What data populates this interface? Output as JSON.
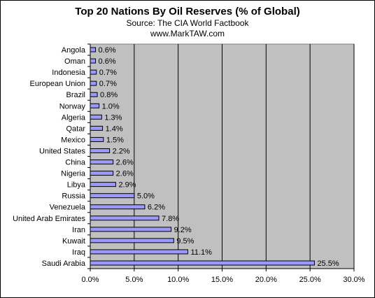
{
  "chart_data": {
    "type": "bar",
    "orientation": "horizontal",
    "title": "Top 20 Nations By Oil Reserves (% of Global)",
    "subtitle_lines": [
      "Source: The CIA World Factbook",
      "www.MarkTAW.com"
    ],
    "categories": [
      "Angola",
      "Oman",
      "Indonesia",
      "European Union",
      "Brazil",
      "Norway",
      "Algeria",
      "Qatar",
      "Mexico",
      "United States",
      "China",
      "Nigeria",
      "Libya",
      "Russia",
      "Venezuela",
      "United Arab Emirates",
      "Iran",
      "Kuwait",
      "Iraq",
      "Saudi Arabia"
    ],
    "values": [
      0.6,
      0.6,
      0.7,
      0.7,
      0.8,
      1.0,
      1.3,
      1.4,
      1.5,
      2.2,
      2.6,
      2.6,
      2.9,
      5.0,
      6.2,
      7.8,
      9.2,
      9.5,
      11.1,
      25.5
    ],
    "value_labels": [
      "0.6%",
      "0.6%",
      "0.7%",
      "0.7%",
      "0.8%",
      "1.0%",
      "1.3%",
      "1.4%",
      "1.5%",
      "2.2%",
      "2.6%",
      "2.6%",
      "2.9%",
      "5.0%",
      "6.2%",
      "7.8%",
      "9.2%",
      "9.5%",
      "11.1%",
      "25.5%"
    ],
    "xlim": [
      0,
      30
    ],
    "x_ticks": [
      0,
      5,
      10,
      15,
      20,
      25,
      30
    ],
    "x_tick_labels": [
      "0.0%",
      "5.0%",
      "10.0%",
      "15.0%",
      "20.0%",
      "25.0%",
      "30.0%"
    ],
    "xlabel": "",
    "ylabel": "",
    "grid": "vertical",
    "legend": "none",
    "colors": {
      "bar_fill": "#9999ff",
      "bar_stroke": "#000000",
      "plot_bg": "#c0c0c0"
    }
  }
}
